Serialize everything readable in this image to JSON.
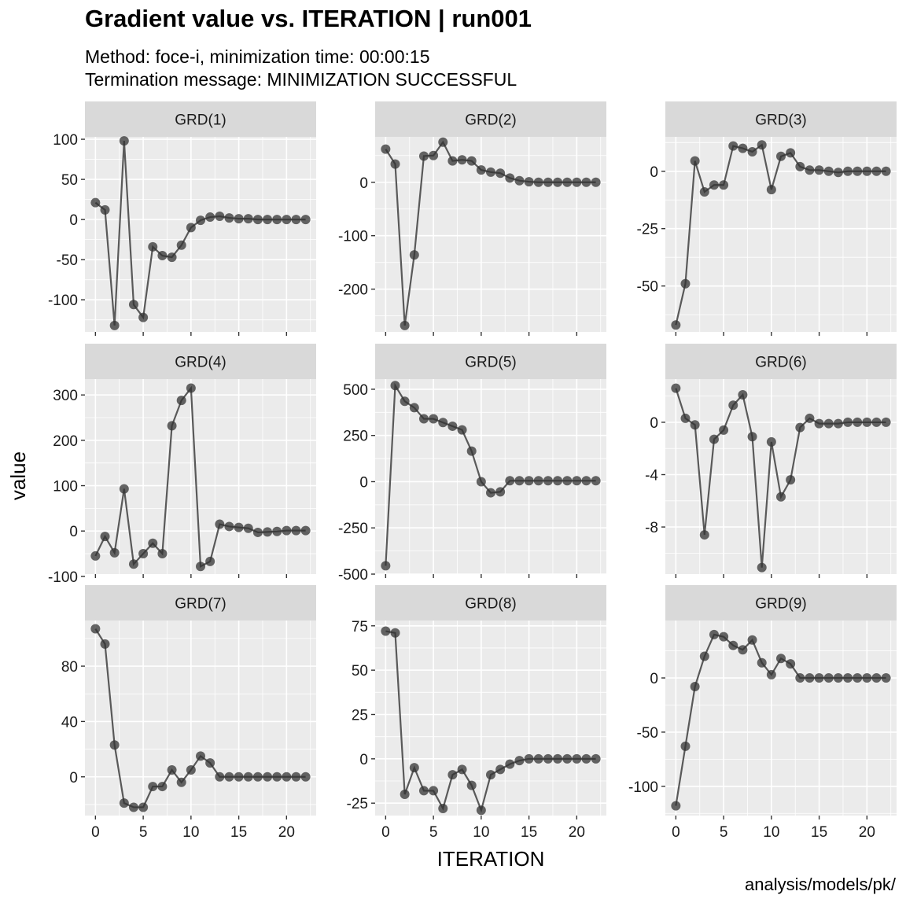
{
  "chart_data": {
    "type": "line",
    "title": "Gradient value vs. ITERATION | run001",
    "subtitle_lines": [
      "Method: foce-i, minimization time: 00:00:15",
      "Termination message: MINIMIZATION SUCCESSFUL"
    ],
    "caption": "analysis/models/pk/",
    "xlabel": "ITERATION",
    "ylabel": "value",
    "x": [
      0,
      1,
      2,
      3,
      4,
      5,
      6,
      7,
      8,
      9,
      10,
      11,
      12,
      13,
      14,
      15,
      16,
      17,
      18,
      19,
      20,
      21,
      22
    ],
    "x_ticks": [
      0,
      5,
      10,
      15,
      20
    ],
    "x_tick_labels": [
      "0",
      "5",
      "10",
      "15",
      "20"
    ],
    "xlim": [
      -1.1,
      23.1
    ],
    "colors": {
      "line": "#595959",
      "point": "#333333",
      "panel": "#ebebeb",
      "strip": "#d9d9d9",
      "grid": "#ffffff"
    },
    "panels": [
      {
        "name": "GRD(1)",
        "ylim": [
          -140,
          103
        ],
        "y_ticks": [
          -100,
          -50,
          0,
          50,
          100
        ],
        "y_tick_labels": [
          "-100",
          "-50",
          "0",
          "50",
          "100"
        ],
        "values": [
          21,
          12,
          -132,
          98,
          -106,
          -122,
          -34,
          -45,
          -47,
          -32,
          -10,
          -1,
          3,
          4,
          2,
          1,
          1,
          0,
          0,
          0,
          0,
          0,
          0
        ]
      },
      {
        "name": "GRD(2)",
        "ylim": [
          -280,
          85
        ],
        "y_ticks": [
          -200,
          -100,
          0
        ],
        "y_tick_labels": [
          "-200",
          "-100",
          "0"
        ],
        "values": [
          62,
          34,
          -268,
          -136,
          49,
          50,
          75,
          40,
          42,
          40,
          23,
          19,
          17,
          8,
          3,
          1,
          0,
          0,
          0,
          0,
          0,
          0,
          0
        ]
      },
      {
        "name": "GRD(3)",
        "ylim": [
          -70,
          15
        ],
        "y_ticks": [
          -50,
          -25,
          0
        ],
        "y_tick_labels": [
          "-50",
          "-25",
          "0"
        ],
        "values": [
          -67,
          -49,
          4.5,
          -9,
          -6,
          -6,
          11,
          10,
          8.5,
          11.5,
          -8,
          6.5,
          8,
          2,
          0.5,
          0.5,
          0,
          -0.5,
          0,
          0,
          0,
          0,
          0
        ]
      },
      {
        "name": "GRD(4)",
        "ylim": [
          -95,
          335
        ],
        "y_ticks": [
          -100,
          0,
          100,
          200,
          300
        ],
        "y_tick_labels": [
          "-100",
          "0",
          "100",
          "200",
          "300"
        ],
        "values": [
          -55,
          -12,
          -48,
          93,
          -73,
          -50,
          -27,
          -50,
          232,
          288,
          315,
          -78,
          -67,
          15,
          10,
          8,
          6,
          -3,
          -2,
          -1,
          1,
          1,
          1
        ]
      },
      {
        "name": "GRD(5)",
        "ylim": [
          -500,
          555
        ],
        "y_ticks": [
          -500,
          -250,
          0,
          250,
          500
        ],
        "y_tick_labels": [
          "-500",
          "-250",
          "0",
          "250",
          "500"
        ],
        "values": [
          -455,
          520,
          435,
          400,
          340,
          340,
          320,
          300,
          280,
          165,
          0,
          -60,
          -55,
          5,
          5,
          5,
          5,
          5,
          5,
          5,
          5,
          5,
          5
        ]
      },
      {
        "name": "GRD(6)",
        "ylim": [
          -11.6,
          3.3
        ],
        "y_ticks": [
          -8,
          -4,
          0
        ],
        "y_tick_labels": [
          "-8",
          "-4",
          "0"
        ],
        "values": [
          2.6,
          0.3,
          -0.2,
          -8.6,
          -1.3,
          -0.6,
          1.3,
          2.1,
          -1.1,
          -11.1,
          -1.5,
          -5.7,
          -4.4,
          -0.4,
          0.3,
          -0.1,
          -0.1,
          -0.1,
          0,
          0,
          0,
          0,
          0
        ]
      },
      {
        "name": "GRD(7)",
        "ylim": [
          -28,
          113
        ],
        "y_ticks": [
          0,
          40,
          80
        ],
        "y_tick_labels": [
          "0",
          "40",
          "80"
        ],
        "values": [
          107,
          96,
          23,
          -19,
          -22,
          -22,
          -7,
          -7,
          5,
          -4,
          5,
          15,
          10,
          0,
          0,
          0,
          0,
          0,
          0,
          0,
          0,
          0,
          0
        ]
      },
      {
        "name": "GRD(8)",
        "ylim": [
          -32,
          78
        ],
        "y_ticks": [
          -25,
          0,
          25,
          50,
          75
        ],
        "y_tick_labels": [
          "-25",
          "0",
          "25",
          "50",
          "75"
        ],
        "values": [
          72,
          71,
          -20,
          -5,
          -18,
          -18,
          -28,
          -9,
          -6,
          -15,
          -29,
          -9,
          -6,
          -3,
          -1,
          0,
          0,
          0,
          0,
          0,
          0,
          0,
          0
        ]
      },
      {
        "name": "GRD(9)",
        "ylim": [
          -127,
          53
        ],
        "y_ticks": [
          -100,
          -50,
          0
        ],
        "y_tick_labels": [
          "-100",
          "-50",
          "0"
        ],
        "values": [
          -118,
          -63,
          -8,
          20,
          40,
          38,
          30,
          26,
          35,
          14,
          3,
          18,
          13,
          0,
          0,
          0,
          0,
          0,
          0,
          0,
          0,
          0,
          0
        ]
      }
    ]
  }
}
